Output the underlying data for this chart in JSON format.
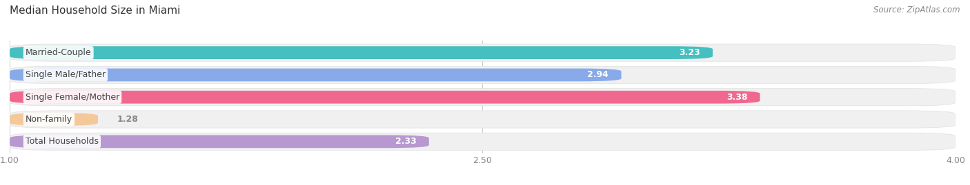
{
  "title": "Median Household Size in Miami",
  "source": "Source: ZipAtlas.com",
  "categories": [
    "Married-Couple",
    "Single Male/Father",
    "Single Female/Mother",
    "Non-family",
    "Total Households"
  ],
  "values": [
    3.23,
    2.94,
    3.38,
    1.28,
    2.33
  ],
  "bar_colors": [
    "#45bfbf",
    "#88aae8",
    "#f06890",
    "#f5c89a",
    "#b898d0"
  ],
  "xmin": 1.0,
  "xmax": 4.0,
  "xticks": [
    1.0,
    2.5,
    4.0
  ],
  "title_fontsize": 11,
  "label_fontsize": 9,
  "value_fontsize": 9,
  "source_fontsize": 8.5,
  "background_color": "#ffffff",
  "row_bg": "#f0f0f0",
  "grid_color": "#cccccc"
}
